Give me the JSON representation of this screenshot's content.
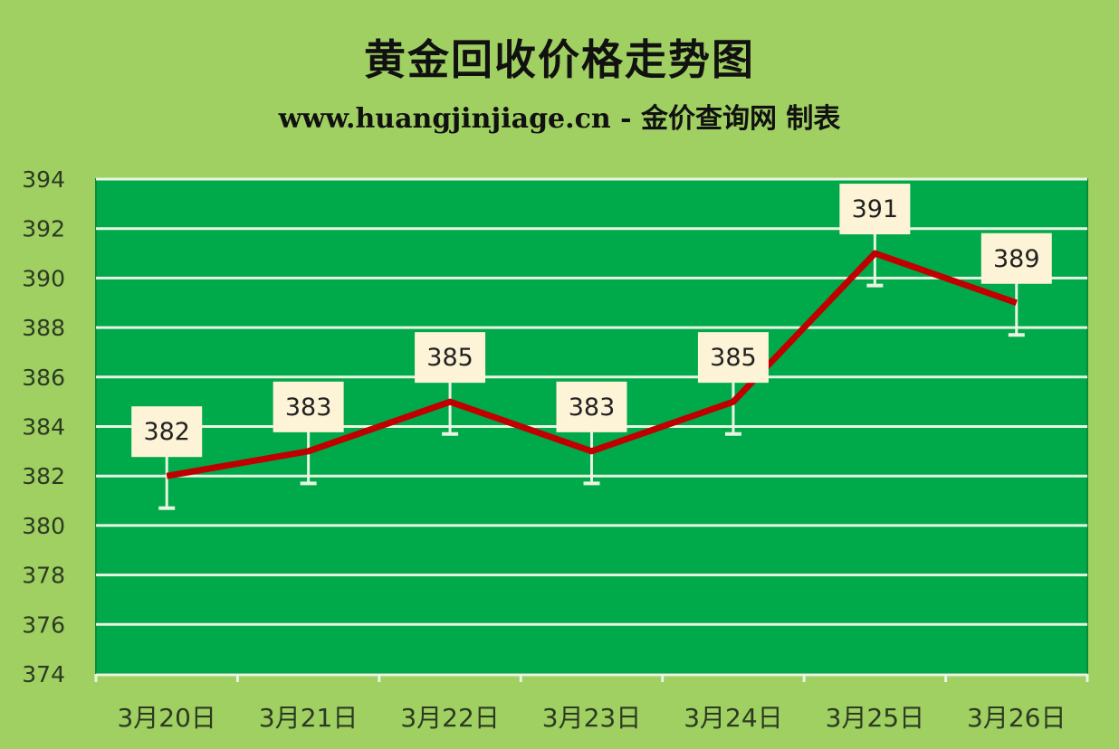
{
  "chart_data": {
    "type": "line",
    "title": "黄金回收价格走势图",
    "subtitle": "www.huangjinjiage.cn - 金价查询网 制表",
    "categories": [
      "3月20日",
      "3月21日",
      "3月22日",
      "3月23日",
      "3月24日",
      "3月25日",
      "3月26日"
    ],
    "values": [
      382,
      383,
      385,
      383,
      385,
      391,
      389
    ],
    "data_labels": [
      "382",
      "383",
      "385",
      "383",
      "385",
      "391",
      "389"
    ],
    "error_bar_minus": 1.3,
    "ylim": [
      374,
      394
    ],
    "yticks": [
      "374",
      "376",
      "378",
      "380",
      "382",
      "384",
      "386",
      "388",
      "390",
      "392",
      "394"
    ],
    "grid": true,
    "legend": "none",
    "colors": {
      "background": "#a0cf62",
      "plot": "#00a94a",
      "line": "#c00000",
      "grid": "#e8f5e0",
      "label_box": "#fdf3d6"
    }
  }
}
